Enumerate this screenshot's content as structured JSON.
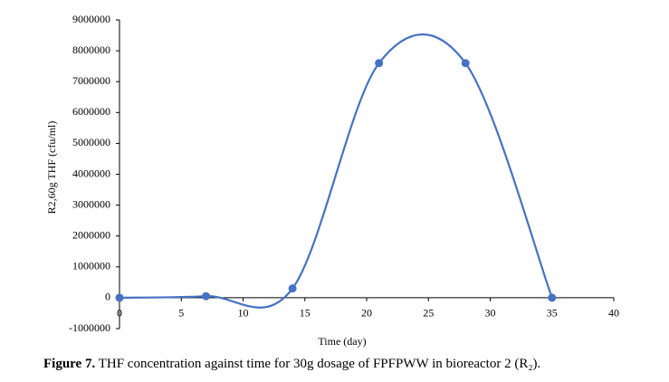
{
  "chart_data": {
    "type": "line",
    "x": [
      0,
      7,
      14,
      21,
      28,
      35
    ],
    "series": [
      {
        "name": "R2,60g THF",
        "color": "#4472c4",
        "values": [
          0,
          50000,
          300000,
          7600000,
          7600000,
          0
        ]
      }
    ],
    "xlim": [
      0,
      40
    ],
    "xticks": [
      0,
      5,
      10,
      15,
      20,
      25,
      30,
      35,
      40
    ],
    "ylim": [
      -1000000,
      9000000
    ],
    "yticks": [
      -1000000,
      0,
      1000000,
      2000000,
      3000000,
      4000000,
      5000000,
      6000000,
      7000000,
      8000000,
      9000000
    ],
    "xlabel": "Time (day)",
    "ylabel": "R2,60g THF (cfu/ml)",
    "smooth": true,
    "grid": false
  },
  "caption": {
    "label": "Figure 7.",
    "text": " THF concentration against time for 30g dosage of FPFPWW in bioreactor 2 (R₂)."
  }
}
